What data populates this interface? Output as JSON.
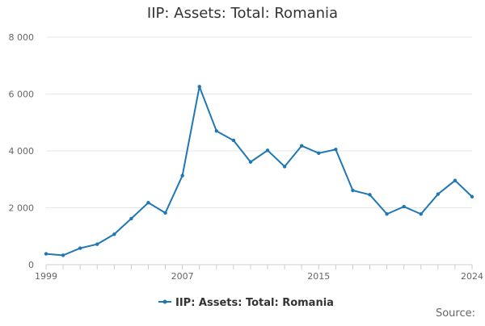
{
  "title": "IIP: Assets: Total: Romania",
  "source_label": "Source:",
  "colors": {
    "series": "#1f77b4",
    "grid": "#e6e6e6",
    "axis": "#cccccc"
  },
  "chart_data": {
    "type": "line",
    "title": "IIP: Assets: Total: Romania",
    "xlabel": "",
    "ylabel": "",
    "x": [
      1999,
      2000,
      2001,
      2002,
      2003,
      2004,
      2005,
      2006,
      2007,
      2008,
      2009,
      2010,
      2011,
      2012,
      2013,
      2014,
      2015,
      2016,
      2017,
      2018,
      2019,
      2020,
      2021,
      2022,
      2023,
      2024
    ],
    "series": [
      {
        "name": "IIP: Assets: Total: Romania",
        "values": [
          380,
          330,
          580,
          720,
          1070,
          1620,
          2180,
          1820,
          3130,
          6260,
          4700,
          4370,
          3610,
          4020,
          3450,
          4180,
          3920,
          4050,
          2610,
          2460,
          1780,
          2040,
          1780,
          2480,
          2960,
          2390
        ]
      }
    ],
    "xlim": [
      1999,
      2024
    ],
    "ylim": [
      0,
      8000
    ],
    "x_ticks": [
      1999,
      2007,
      2015,
      2024
    ],
    "y_ticks": [
      0,
      2000,
      4000,
      6000,
      8000
    ],
    "y_tick_labels": [
      "0",
      "2 000",
      "4 000",
      "6 000",
      "8 000"
    ],
    "grid": true,
    "legend_position": "bottom"
  }
}
